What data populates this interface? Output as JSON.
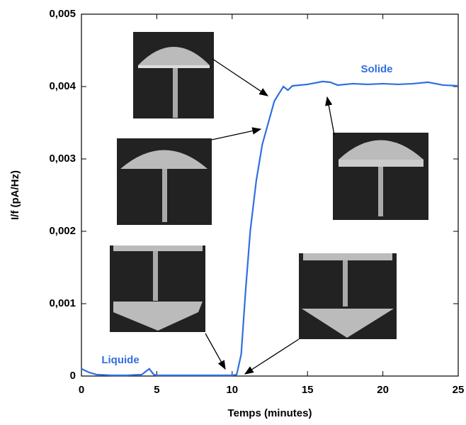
{
  "chart_data": {
    "type": "line",
    "xlabel": "Temps (minutes)",
    "ylabel": "I/f (pA/Hz)",
    "annotations": [
      "Liquide",
      "Solide"
    ],
    "x": [
      0,
      0.5,
      1,
      2,
      3,
      4,
      4.5,
      4.8,
      5,
      6,
      7,
      8,
      9,
      10,
      10.3,
      10.6,
      10.9,
      11.2,
      11.6,
      12,
      12.4,
      12.8,
      13.1,
      13.4,
      13.7,
      14,
      15,
      16,
      16.5,
      17,
      18,
      19,
      20,
      21,
      22,
      23,
      24,
      25
    ],
    "series": [
      {
        "name": "I/f",
        "color": "#2f6fe0",
        "values": [
          0.0001,
          5e-05,
          2e-05,
          1e-05,
          1e-05,
          2e-05,
          0.0001,
          2e-05,
          1e-05,
          1e-05,
          1e-05,
          1e-05,
          1e-05,
          1e-05,
          2e-05,
          0.0003,
          0.0012,
          0.002,
          0.0027,
          0.0032,
          0.0035,
          0.0038,
          0.0039,
          0.004,
          0.00395,
          0.00401,
          0.00403,
          0.00407,
          0.00406,
          0.00402,
          0.00404,
          0.00403,
          0.00404,
          0.00403,
          0.00404,
          0.00406,
          0.00402,
          0.00401
        ]
      }
    ],
    "xlim": [
      0,
      25
    ],
    "xticks": [
      0,
      5,
      10,
      15,
      20,
      25
    ],
    "ylim": [
      0,
      0.005
    ],
    "yticks": [
      0,
      {
        "value": 0.001,
        "label": "0,001"
      },
      {
        "value": 0.002,
        "label": "0,002"
      },
      {
        "value": 0.003,
        "label": "0,003"
      },
      {
        "value": 0.004,
        "label": "0,004"
      },
      {
        "value": 0.005,
        "label": "0,005"
      }
    ]
  }
}
